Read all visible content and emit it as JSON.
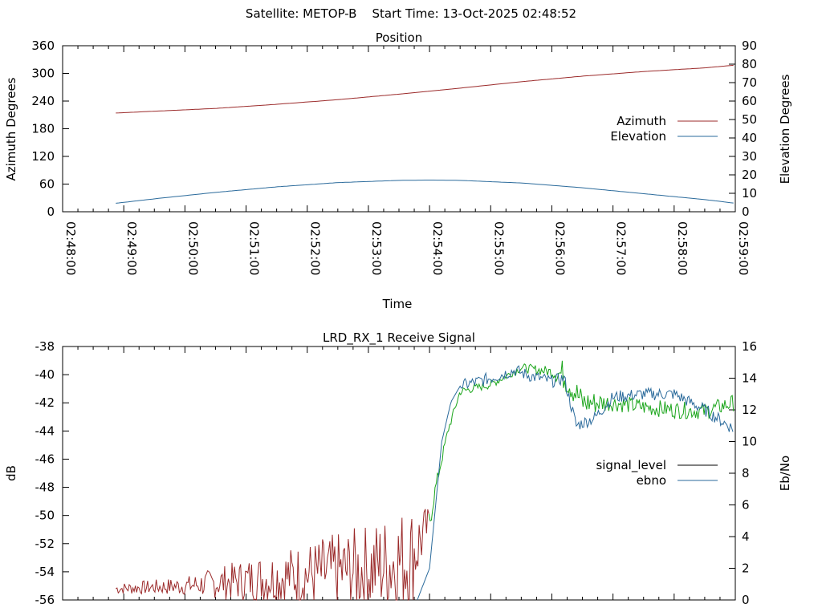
{
  "header": {
    "satellite_label": "Satellite: METOP-B",
    "start_label": "Start Time: 13-Oct-2025 02:48:52"
  },
  "colors": {
    "azimuth": "#9b2a2a",
    "elevation": "#2a6a9b",
    "signal_level_legend": "#000000",
    "signal_level_low": "#9b2a2a",
    "signal_level_high": "#1aa51a",
    "ebno": "#2a6a9b",
    "axis": "#000000"
  },
  "chart_data": [
    {
      "type": "line",
      "title": "Position",
      "xlabel": "Time",
      "ylabel": "Azimuth Degrees",
      "y2label": "Elevation Degrees",
      "x_ticks": [
        "02:48:00",
        "02:49:00",
        "02:50:00",
        "02:51:00",
        "02:52:00",
        "02:53:00",
        "02:54:00",
        "02:55:00",
        "02:56:00",
        "02:57:00",
        "02:58:00",
        "02:59:00"
      ],
      "ylim": [
        0,
        360
      ],
      "y_ticks": [
        "0",
        "60",
        "120",
        "180",
        "240",
        "300",
        "360"
      ],
      "y2lim": [
        0,
        90
      ],
      "y2_ticks": [
        "0",
        "10",
        "20",
        "30",
        "40",
        "50",
        "60",
        "70",
        "80",
        "90"
      ],
      "legend_position": "right",
      "series": [
        {
          "name": "Azimuth",
          "axis": "y",
          "x_minutes": [
            0.87,
            1.5,
            2.5,
            3.5,
            4.5,
            5.5,
            6.5,
            7.5,
            8.5,
            9.5,
            10.5,
            11.0
          ],
          "values": [
            214,
            218,
            224,
            233,
            243,
            255,
            268,
            282,
            294,
            304,
            312,
            318
          ]
        },
        {
          "name": "Elevation",
          "axis": "y2",
          "x_minutes": [
            0.87,
            1.5,
            2.5,
            3.5,
            4.5,
            5.5,
            6.0,
            6.5,
            7.5,
            8.5,
            9.5,
            10.5,
            11.0
          ],
          "values": [
            4.6,
            7.0,
            10.5,
            13.5,
            15.8,
            17.0,
            17.2,
            17.0,
            15.6,
            13.0,
            9.8,
            6.6,
            4.6
          ]
        }
      ]
    },
    {
      "type": "line",
      "title": "LRD_RX_1 Receive Signal",
      "ylabel": "dB",
      "y2label": "Eb/No",
      "ylim": [
        -56,
        -38
      ],
      "y_ticks": [
        "-56",
        "-54",
        "-52",
        "-50",
        "-48",
        "-46",
        "-44",
        "-42",
        "-40",
        "-38"
      ],
      "y2lim": [
        0,
        16
      ],
      "y2_ticks": [
        "0",
        "2",
        "4",
        "6",
        "8",
        "10",
        "12",
        "14",
        "16"
      ],
      "x_tick_count": 12,
      "legend_position": "right",
      "series": [
        {
          "name": "signal_level",
          "axis": "y",
          "x_minutes": [
            0.87,
            2.0,
            3.0,
            4.0,
            5.0,
            5.7,
            6.0,
            6.1,
            6.3,
            6.5,
            7.0,
            7.5,
            8.0,
            8.2,
            8.5,
            9.0,
            9.5,
            10.0,
            10.5,
            10.97
          ],
          "values": [
            -55.2,
            -55.0,
            -54.6,
            -54.2,
            -53.8,
            -53.0,
            -50.5,
            -48.0,
            -44.0,
            -41.2,
            -40.7,
            -39.5,
            -39.8,
            -40.0,
            -42.0,
            -42.0,
            -42.3,
            -42.5,
            -42.6,
            -42.0
          ],
          "noise_db": [
            0.3,
            0.5,
            1.2,
            1.8,
            2.5,
            3.0,
            0.8,
            0.5,
            0.3,
            0.3,
            0.3,
            0.3,
            0.4,
            1.2,
            1.0,
            0.6,
            0.6,
            0.6,
            0.6,
            0.6
          ]
        },
        {
          "name": "ebno",
          "axis": "y2",
          "x_minutes": [
            5.8,
            6.0,
            6.2,
            6.35,
            6.5,
            7.0,
            7.4,
            7.6,
            8.0,
            8.2,
            8.4,
            8.7,
            9.0,
            9.5,
            10.0,
            10.5,
            10.97
          ],
          "values": [
            0,
            2.0,
            10.0,
            12.5,
            13.5,
            14.0,
            14.5,
            14.2,
            13.8,
            14.0,
            11.0,
            11.5,
            12.8,
            13.0,
            13.0,
            12.0,
            10.8
          ]
        }
      ]
    }
  ]
}
